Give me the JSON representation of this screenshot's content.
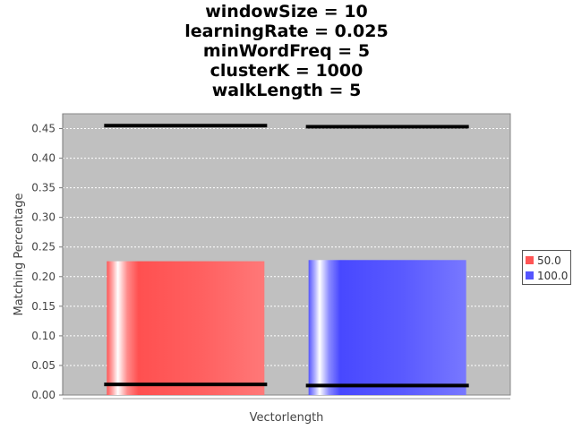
{
  "chart_data": {
    "type": "bar",
    "title_lines": [
      "windowSize = 10",
      "learningRate = 0.025",
      "minWordFreq = 5",
      "clusterK = 1000",
      "walkLength = 5"
    ],
    "xlabel": "Vectorlength",
    "ylabel": "Matching Percentage",
    "ylim": [
      0,
      0.475
    ],
    "yticks": [
      "0.00",
      "0.05",
      "0.10",
      "0.15",
      "0.20",
      "0.25",
      "0.30",
      "0.35",
      "0.40",
      "0.45"
    ],
    "grid": true,
    "legend_position": "right",
    "series": [
      {
        "name": "50.0",
        "color": "#ff5555",
        "value": 0.226,
        "error_low": 0.018,
        "error_high": 0.455
      },
      {
        "name": "100.0",
        "color": "#5555ff",
        "value": 0.228,
        "error_low": 0.016,
        "error_high": 0.453
      }
    ],
    "colors": {
      "plot_background": "#c0c0c0",
      "grid": "#ffffff",
      "error_bar": "#000000"
    }
  }
}
